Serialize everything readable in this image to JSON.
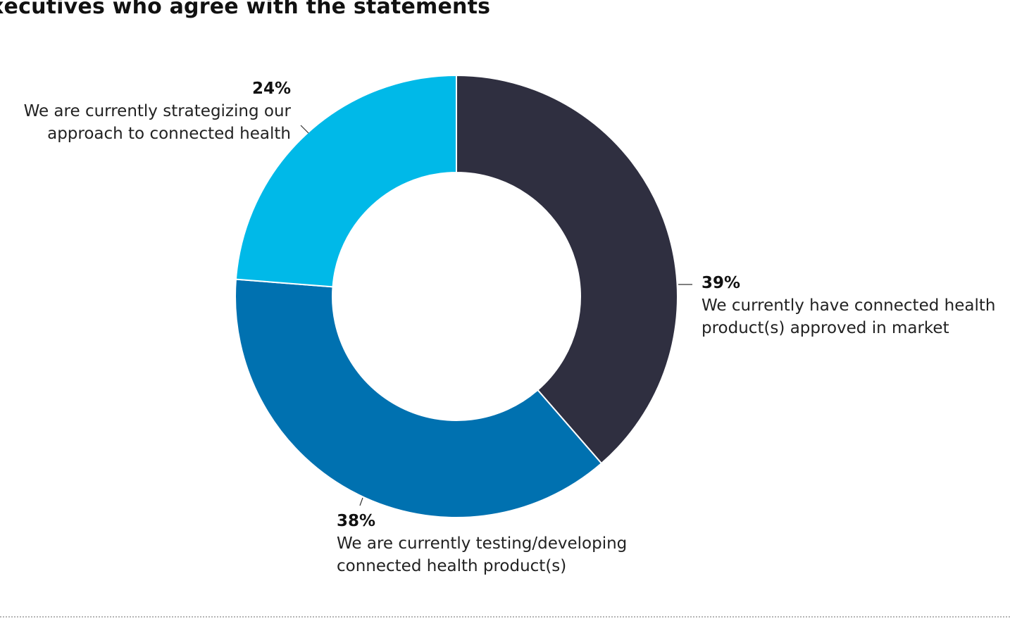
{
  "chart_data": {
    "type": "pie",
    "title": "xecutives who agree with the statements",
    "donut": true,
    "slices": [
      {
        "value": 39,
        "pct_label": "39%",
        "label_lines": [
          "We currently have connected health",
          "product(s) approved in market"
        ],
        "color": "#2f2f40"
      },
      {
        "value": 38,
        "pct_label": "38%",
        "label_lines": [
          "We are currently testing/developing",
          "connected health product(s)"
        ],
        "color": "#0071b0"
      },
      {
        "value": 24,
        "pct_label": "24%",
        "label_lines": [
          "We are currently strategizing our",
          "approach to connected health"
        ],
        "color": "#00b9e8"
      }
    ]
  }
}
